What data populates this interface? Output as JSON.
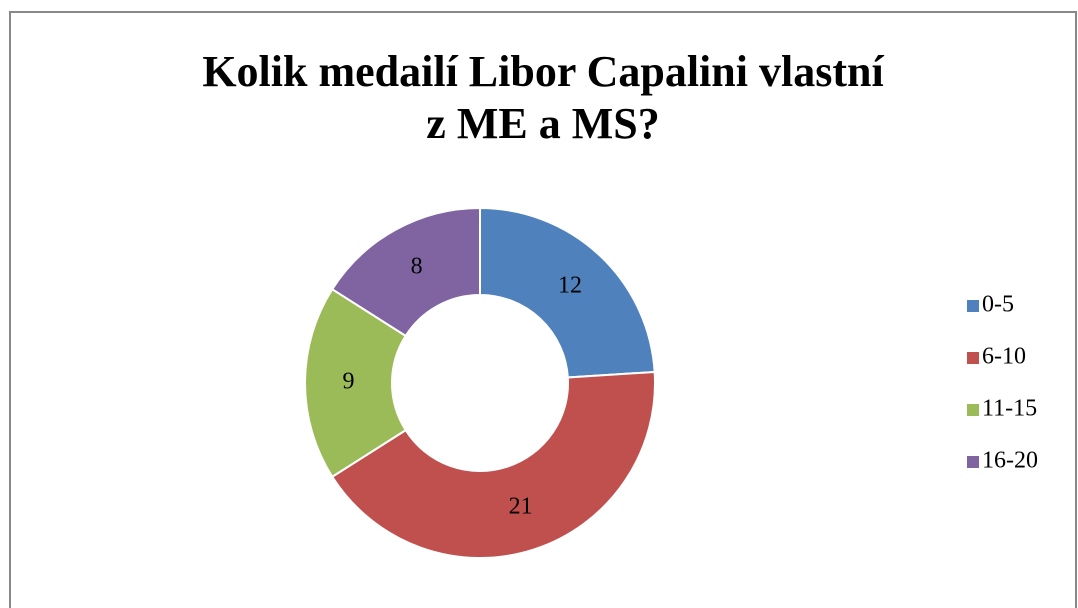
{
  "chart_data": {
    "type": "donut",
    "title": [
      "Kolik medailí Libor Capalini vlastní",
      "z ME a MS?"
    ],
    "categories": [
      "0-5",
      "6-10",
      "11-15",
      "16-20"
    ],
    "values": [
      12,
      21,
      9,
      8
    ],
    "colors": [
      "#4f81bd",
      "#c0504d",
      "#9bbb59",
      "#8064a2"
    ],
    "legend": "right"
  }
}
